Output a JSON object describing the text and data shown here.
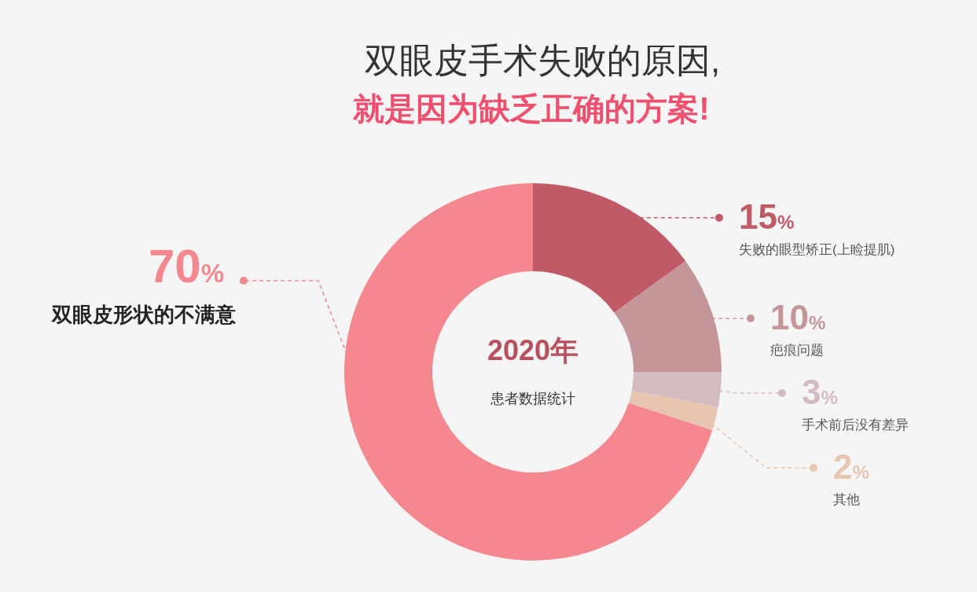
{
  "chart_data": {
    "type": "donut",
    "title": "双眼皮手术失败的原因,",
    "subtitle": "就是因为缺乏正确的方案!",
    "categories": [
      "失败的眼型矫正(上睑提肌)",
      "疤痕问题",
      "手术前后没有差异",
      "其他",
      "双眼皮形状的不满意"
    ],
    "values": [
      15,
      10,
      3,
      2,
      70
    ],
    "colors": [
      "#c05a66",
      "#c4969a",
      "#d3bcc0",
      "#e8c5b0",
      "#f5888f"
    ],
    "value_labels": [
      "15%",
      "10%",
      "3%",
      "2%",
      "70%"
    ],
    "annotations": [
      "2020年",
      "患者数据统计"
    ]
  }
}
